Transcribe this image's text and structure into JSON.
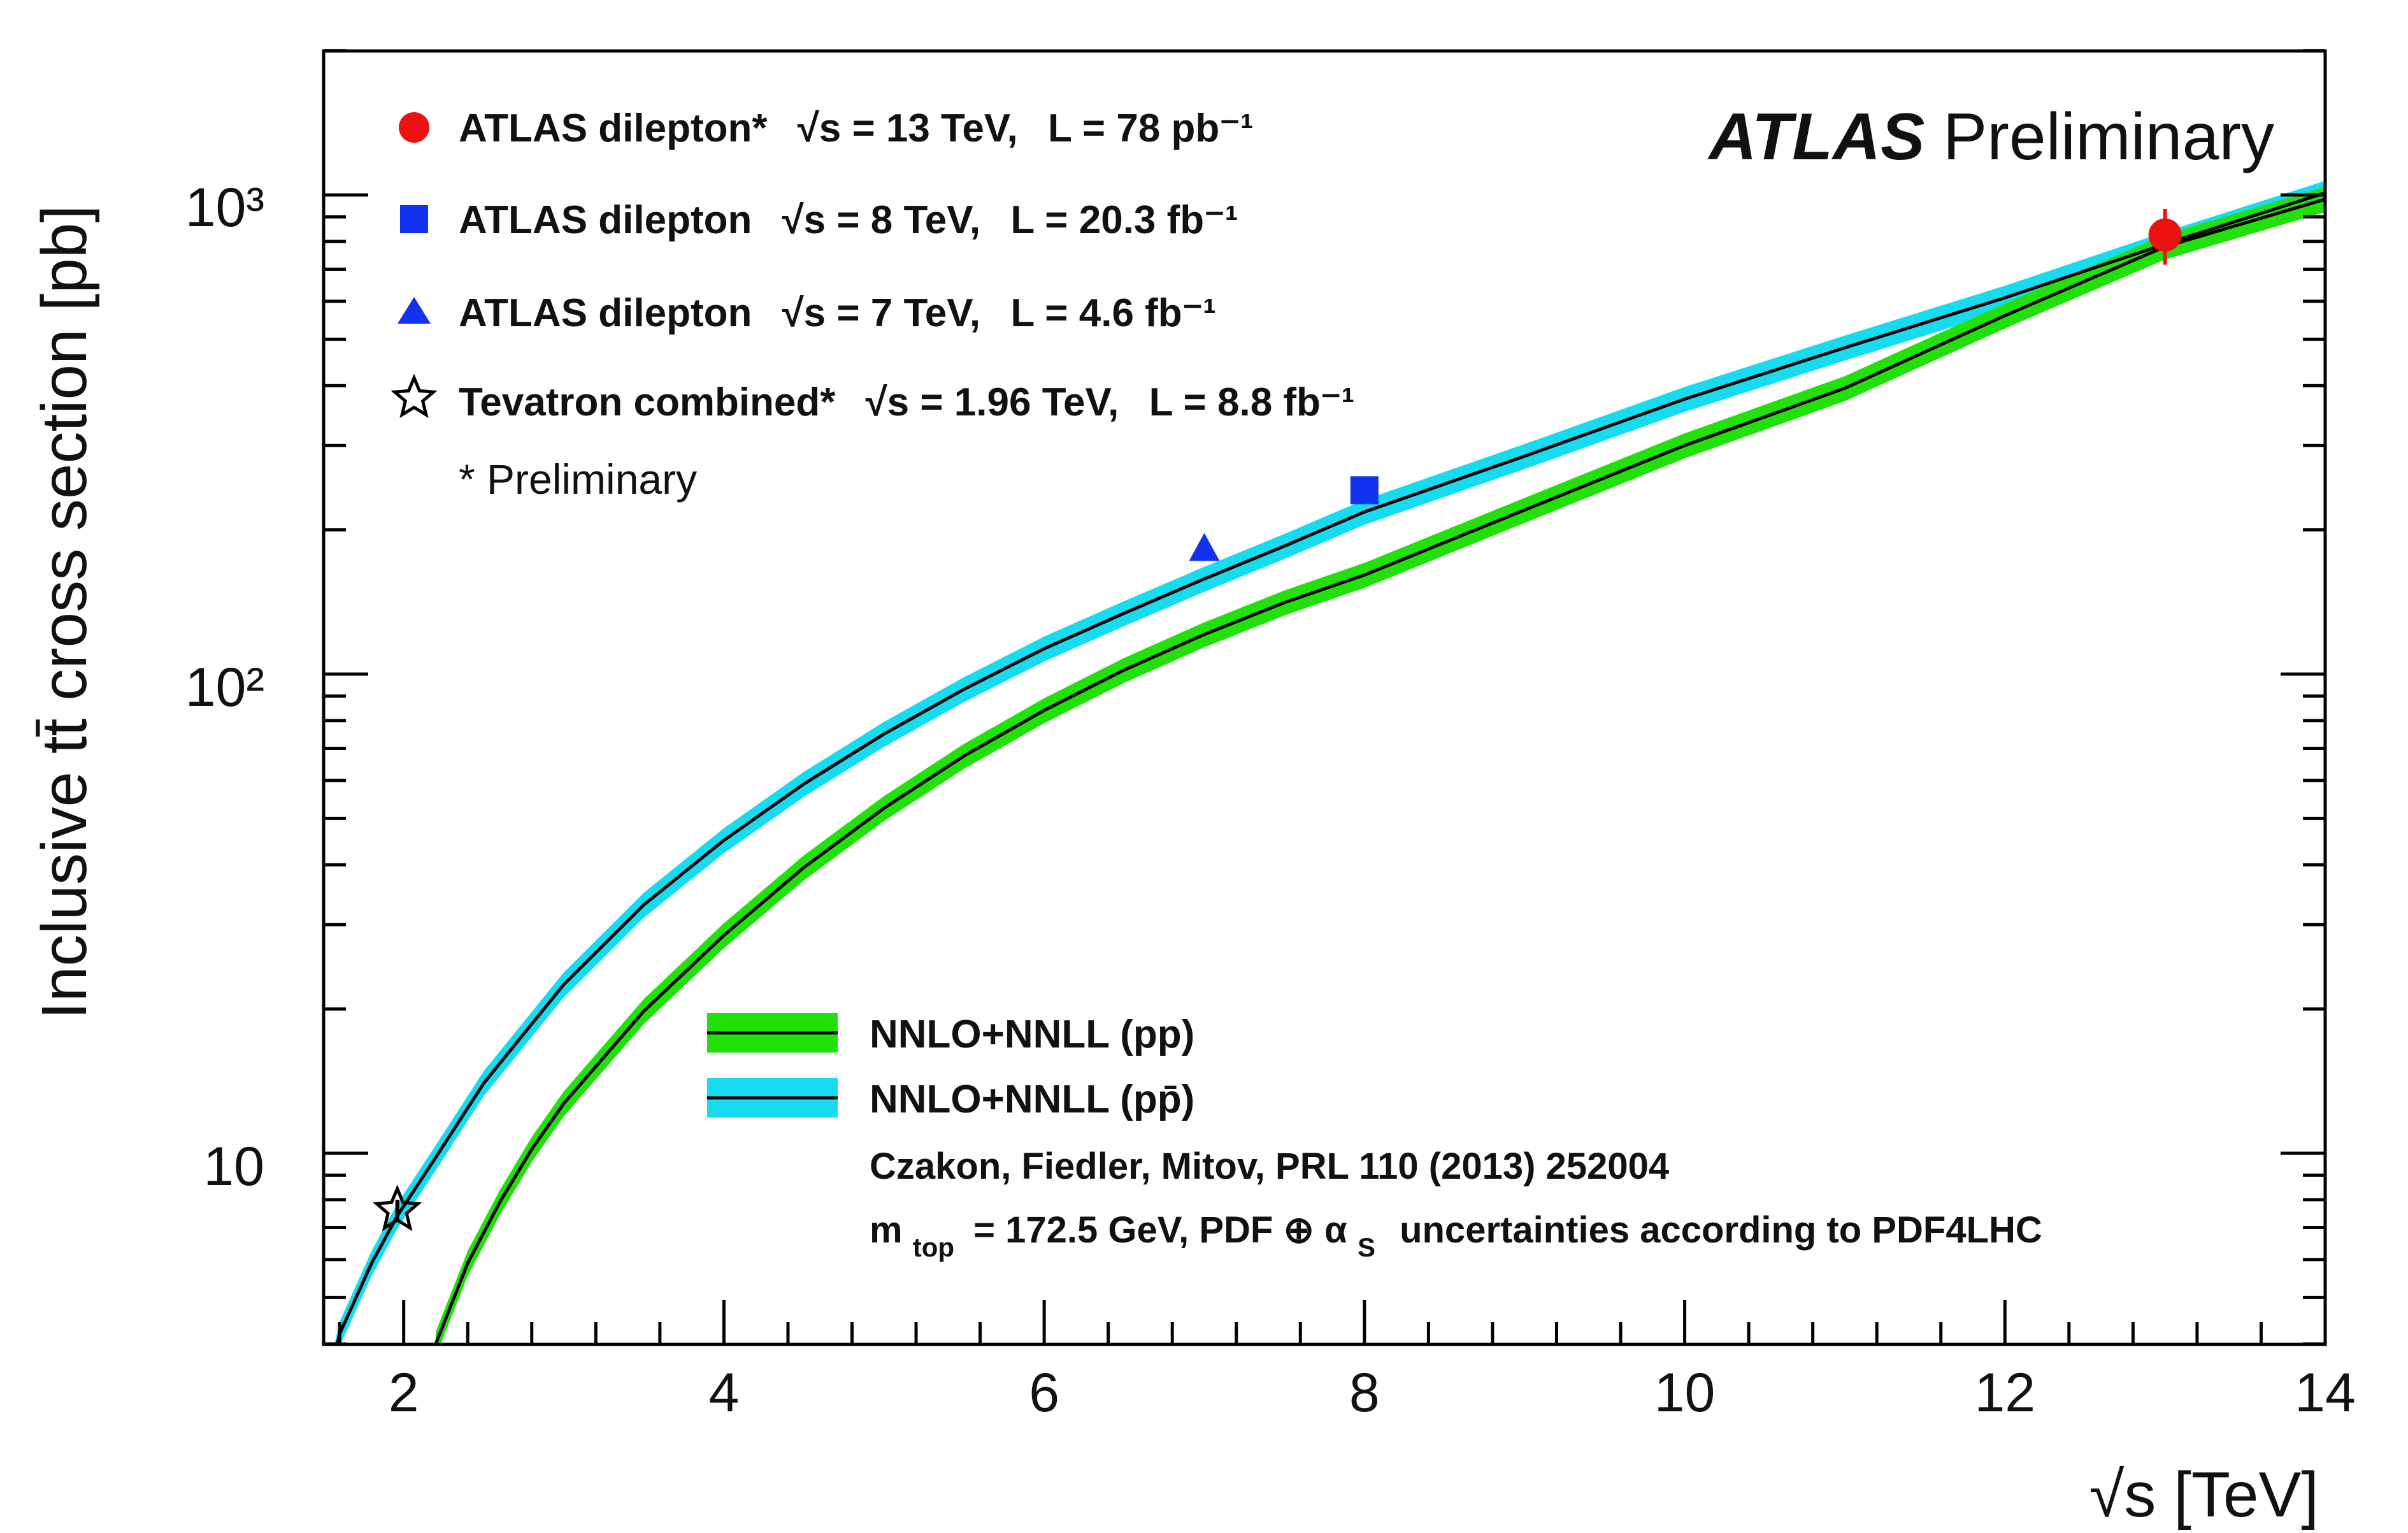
{
  "chart_data": {
    "type": "line",
    "title": "",
    "xlabel": "√s [TeV]",
    "ylabel": "Inclusive tt̄ cross section [pb]",
    "xlim": [
      1.5,
      14
    ],
    "ylim": [
      4,
      2000
    ],
    "yscale": "log",
    "x_ticks": [
      "2",
      "4",
      "6",
      "8",
      "10",
      "12",
      "14"
    ],
    "y_ticks": [
      "10",
      "10²",
      "10³"
    ],
    "grid": false,
    "banner": {
      "bold": "ATLAS",
      "plain": "Preliminary"
    },
    "series": [
      {
        "name": "NNLO+NNLL (pp)",
        "kind": "band",
        "color": "#22e00a",
        "line_color": "#000000",
        "rel_uncertainty": 0.06,
        "x": [
          2.2,
          2.4,
          2.6,
          2.8,
          3.0,
          3.5,
          4.0,
          4.5,
          5.0,
          5.5,
          6.0,
          6.5,
          7.0,
          7.5,
          8.0,
          9.0,
          10.0,
          11.0,
          12.0,
          13.0,
          14.0
        ],
        "y": [
          4.0,
          5.9,
          7.9,
          10.2,
          12.7,
          19.8,
          28.5,
          39.5,
          52.5,
          67.5,
          84.0,
          102,
          121,
          141,
          161,
          220,
          300,
          395,
          560,
          780,
          980
        ]
      },
      {
        "name": "NNLO+NNLL (pp̄)",
        "kind": "band",
        "color": "#17dcf0",
        "line_color": "#000000",
        "rel_uncertainty": 0.06,
        "x": [
          1.52,
          1.6,
          1.8,
          1.96,
          2.2,
          2.5,
          3.0,
          3.5,
          4.0,
          4.5,
          5.0,
          5.5,
          6.0,
          6.5,
          7.0,
          7.5,
          8.0,
          9.0,
          10.0,
          11.0,
          12.0,
          13.0,
          14.0
        ],
        "y": [
          3.2,
          4.2,
          5.9,
          7.4,
          9.8,
          14.0,
          22.5,
          33.0,
          45.0,
          59.0,
          75.0,
          93.0,
          113,
          134,
          158,
          185,
          218,
          285,
          375,
          480,
          610,
          790,
          1010
        ]
      }
    ],
    "measurements": [
      {
        "name": "ATLAS dilepton*",
        "sqrt_s": "√s = 13 TeV,",
        "lumi": "L = 78 pb⁻¹",
        "x": 13,
        "y": 825,
        "err": 110,
        "marker": "circle",
        "color": "#ee1111"
      },
      {
        "name": "ATLAS dilepton",
        "sqrt_s": "√s = 8 TeV,",
        "lumi": "L = 20.3 fb⁻¹",
        "x": 8,
        "y": 242,
        "err": 8,
        "marker": "square",
        "color": "#1133ee"
      },
      {
        "name": "ATLAS dilepton",
        "sqrt_s": "√s = 7 TeV,",
        "lumi": "L = 4.6 fb⁻¹",
        "x": 7,
        "y": 182,
        "err": 6,
        "marker": "triangle",
        "color": "#1133ee"
      },
      {
        "name": "Tevatron combined*",
        "sqrt_s": "√s = 1.96 TeV,",
        "lumi": "L = 8.8 fb⁻¹",
        "x": 1.96,
        "y": 7.6,
        "err": 0.4,
        "marker": "star",
        "color": "#000000"
      }
    ],
    "legend_footnote": "* Preliminary",
    "band_legend": [
      "NNLO+NNLL (pp)",
      "NNLO+NNLL (pp̄)"
    ],
    "citation": "Czakon, Fiedler, Mitov, PRL 110 (2013) 252004",
    "note": {
      "m": "m",
      "sub_top": "top",
      "rest": "= 172.5 GeV, PDF ⊕ α",
      "sub_s": "S",
      "tail": "uncertainties according to PDF4LHC"
    }
  }
}
